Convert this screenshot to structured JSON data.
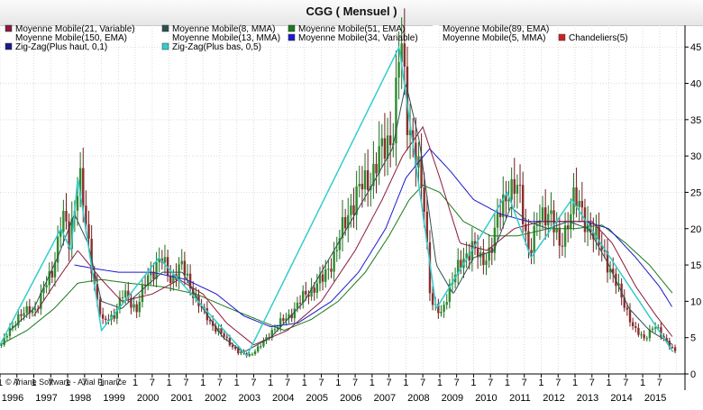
{
  "title": "CGG  ( Mensuel )",
  "footer": "© Ariane Software - Axial Finance",
  "legend": [
    {
      "label": "Moyenne Mobile(21, Variable)",
      "color": "#8b1a3a"
    },
    {
      "label": "Moyenne Mobile(8, MMA)",
      "color": "#2f4f4f"
    },
    {
      "label": "Moyenne Mobile(51, EMA)",
      "color": "#1a7a1a"
    },
    {
      "label": "Moyenne Mobile(89, EMA)",
      "color": "#ffffff"
    },
    {
      "label": "Moyenne Mobile(150, EMA)",
      "color": "#ffffff"
    },
    {
      "label": "Moyenne Mobile(13, MMA)",
      "color": "#ffffff"
    },
    {
      "label": "Moyenne Mobile(34, Variable)",
      "color": "#1a1acd"
    },
    {
      "label": "Moyenne Mobile(5, MMA)",
      "color": "#ffffff"
    },
    {
      "label": "Chandeliers(5)",
      "color": "#cc2222"
    },
    {
      "label": "Zig-Zag(Plus haut, 0,1)",
      "color": "#1a1a8a"
    },
    {
      "label": "Zig-Zag(Plus bas, 0,5)",
      "color": "#33cccc"
    }
  ],
  "chart_data": {
    "type": "line",
    "title": "CGG  ( Mensuel )",
    "yticks": [
      0,
      5,
      10,
      15,
      20,
      25,
      30,
      35,
      40,
      45
    ],
    "ylim": [
      0,
      48
    ],
    "x_year_labels": [
      "1996",
      "1997",
      "1998",
      "1999",
      "2000",
      "2001",
      "2002",
      "2003",
      "2004",
      "2005",
      "2006",
      "2007",
      "2008",
      "2009",
      "2010",
      "2011",
      "2012",
      "2013",
      "2014",
      "2015"
    ],
    "x_month_labels": [
      "1",
      "7",
      "1",
      "7",
      "1",
      "7",
      "1",
      "7",
      "1",
      "7",
      "1",
      "7",
      "1",
      "7",
      "1",
      "7",
      "1",
      "7",
      "1",
      "7",
      "1",
      "7",
      "1",
      "7",
      "1",
      "7",
      "1",
      "7",
      "1",
      "7",
      "1",
      "7",
      "1",
      "7",
      "1",
      "7",
      "1",
      "7",
      "1",
      "7"
    ],
    "grid": true,
    "legend_position": "top-left",
    "colors": {
      "price_up": "#1f6e1f",
      "price_down": "#6e1f1f",
      "ma8": "#2f4f4f",
      "ma21": "#8b1a3a",
      "ma34": "#1a1acd",
      "ma51": "#1a7a1a",
      "zigzag_low": "#33cccc",
      "zigzag_high": "#1a1a8a"
    },
    "price_anchors": [
      [
        1996.0,
        4
      ],
      [
        1996.5,
        8
      ],
      [
        1997.0,
        9
      ],
      [
        1997.5,
        14
      ],
      [
        1997.8,
        22
      ],
      [
        1998.0,
        18
      ],
      [
        1998.3,
        28
      ],
      [
        1998.5,
        20
      ],
      [
        1998.8,
        11
      ],
      [
        1999.0,
        7
      ],
      [
        1999.3,
        8
      ],
      [
        1999.6,
        11
      ],
      [
        2000.0,
        9
      ],
      [
        2000.3,
        13
      ],
      [
        2000.7,
        16
      ],
      [
        2001.0,
        13
      ],
      [
        2001.3,
        15
      ],
      [
        2001.6,
        12
      ],
      [
        2001.9,
        9
      ],
      [
        2002.2,
        7
      ],
      [
        2002.6,
        5
      ],
      [
        2003.0,
        3
      ],
      [
        2003.3,
        2.5
      ],
      [
        2003.7,
        4
      ],
      [
        2004.0,
        6
      ],
      [
        2004.5,
        8
      ],
      [
        2005.0,
        11
      ],
      [
        2005.5,
        13
      ],
      [
        2005.9,
        17
      ],
      [
        2006.3,
        23
      ],
      [
        2006.7,
        26
      ],
      [
        2007.0,
        28
      ],
      [
        2007.3,
        31
      ],
      [
        2007.6,
        34
      ],
      [
        2007.8,
        46
      ],
      [
        2008.0,
        36
      ],
      [
        2008.2,
        31
      ],
      [
        2008.5,
        23
      ],
      [
        2008.7,
        10
      ],
      [
        2009.0,
        8
      ],
      [
        2009.3,
        13
      ],
      [
        2009.6,
        15
      ],
      [
        2009.9,
        18
      ],
      [
        2010.2,
        15
      ],
      [
        2010.5,
        18
      ],
      [
        2010.8,
        23
      ],
      [
        2011.0,
        26
      ],
      [
        2011.3,
        25
      ],
      [
        2011.6,
        17
      ],
      [
        2011.9,
        21
      ],
      [
        2012.2,
        23
      ],
      [
        2012.5,
        17
      ],
      [
        2012.9,
        24
      ],
      [
        2013.2,
        22
      ],
      [
        2013.5,
        19
      ],
      [
        2013.8,
        17
      ],
      [
        2014.1,
        13
      ],
      [
        2014.4,
        10
      ],
      [
        2014.7,
        6
      ],
      [
        2015.0,
        5
      ],
      [
        2015.3,
        6.5
      ],
      [
        2015.6,
        5
      ],
      [
        2015.9,
        3
      ]
    ],
    "ma8_anchors": [
      [
        1996.3,
        6
      ],
      [
        1997.0,
        9
      ],
      [
        1997.7,
        16
      ],
      [
        1998.2,
        22
      ],
      [
        1998.6,
        18
      ],
      [
        1999.0,
        10
      ],
      [
        1999.6,
        9
      ],
      [
        2000.3,
        12
      ],
      [
        2000.8,
        14
      ],
      [
        2001.4,
        14
      ],
      [
        2002.0,
        9
      ],
      [
        2002.6,
        5
      ],
      [
        2003.2,
        3
      ],
      [
        2004.0,
        5
      ],
      [
        2005.0,
        10
      ],
      [
        2006.0,
        18
      ],
      [
        2007.0,
        26
      ],
      [
        2007.6,
        31
      ],
      [
        2008.0,
        40
      ],
      [
        2008.4,
        32
      ],
      [
        2008.9,
        15
      ],
      [
        2009.4,
        11
      ],
      [
        2010.0,
        16
      ],
      [
        2010.6,
        17
      ],
      [
        2011.1,
        23
      ],
      [
        2011.6,
        21
      ],
      [
        2012.2,
        20
      ],
      [
        2012.8,
        21
      ],
      [
        2013.4,
        20
      ],
      [
        2014.0,
        15
      ],
      [
        2014.6,
        9
      ],
      [
        2015.2,
        6
      ],
      [
        2015.9,
        4
      ]
    ],
    "ma21_anchors": [
      [
        1997.0,
        8
      ],
      [
        1997.7,
        13
      ],
      [
        1998.3,
        17
      ],
      [
        1999.0,
        13
      ],
      [
        1999.6,
        10
      ],
      [
        2000.5,
        11
      ],
      [
        2001.3,
        13
      ],
      [
        2002.0,
        11
      ],
      [
        2002.7,
        7
      ],
      [
        2003.5,
        4
      ],
      [
        2004.5,
        6
      ],
      [
        2005.5,
        10
      ],
      [
        2006.5,
        17
      ],
      [
        2007.3,
        24
      ],
      [
        2007.9,
        30
      ],
      [
        2008.5,
        34
      ],
      [
        2009.0,
        27
      ],
      [
        2009.6,
        18
      ],
      [
        2010.4,
        17
      ],
      [
        2011.2,
        20
      ],
      [
        2012.0,
        21
      ],
      [
        2012.8,
        21
      ],
      [
        2013.5,
        21
      ],
      [
        2014.1,
        18
      ],
      [
        2014.8,
        12
      ],
      [
        2015.4,
        8
      ],
      [
        2015.9,
        5
      ]
    ],
    "ma34_anchors": [
      [
        1998.2,
        15
      ],
      [
        1998.8,
        14.5
      ],
      [
        1999.5,
        14
      ],
      [
        2000.5,
        14
      ],
      [
        2001.5,
        13
      ],
      [
        2002.4,
        11
      ],
      [
        2003.2,
        8
      ],
      [
        2004.0,
        6.5
      ],
      [
        2004.8,
        7
      ],
      [
        2005.8,
        10
      ],
      [
        2006.6,
        14
      ],
      [
        2007.4,
        20
      ],
      [
        2008.0,
        27
      ],
      [
        2008.7,
        31
      ],
      [
        2009.3,
        28
      ],
      [
        2010.0,
        24
      ],
      [
        2010.8,
        22
      ],
      [
        2011.6,
        21
      ],
      [
        2012.5,
        21
      ],
      [
        2013.3,
        21
      ],
      [
        2014.0,
        20
      ],
      [
        2014.8,
        16
      ],
      [
        2015.5,
        12
      ],
      [
        2015.9,
        9
      ]
    ],
    "ma51_anchors": [
      [
        1996.0,
        4
      ],
      [
        1996.8,
        6
      ],
      [
        1997.6,
        9
      ],
      [
        1998.3,
        12.5
      ],
      [
        1999.0,
        13
      ],
      [
        1999.8,
        12.5
      ],
      [
        2000.8,
        12
      ],
      [
        2001.8,
        11
      ],
      [
        2002.8,
        9
      ],
      [
        2003.6,
        7.5
      ],
      [
        2004.4,
        6
      ],
      [
        2005.2,
        7.5
      ],
      [
        2006.0,
        10
      ],
      [
        2006.8,
        14
      ],
      [
        2007.5,
        19
      ],
      [
        2008.1,
        24
      ],
      [
        2008.5,
        26
      ],
      [
        2009.0,
        25
      ],
      [
        2009.7,
        21
      ],
      [
        2010.5,
        19
      ],
      [
        2011.3,
        19
      ],
      [
        2012.2,
        20
      ],
      [
        2013.0,
        20
      ],
      [
        2013.8,
        20.5
      ],
      [
        2014.5,
        18
      ],
      [
        2015.2,
        15
      ],
      [
        2015.9,
        11
      ]
    ],
    "zz_low": [
      [
        1996.0,
        4
      ],
      [
        1997.8,
        20
      ],
      [
        1998.1,
        17
      ],
      [
        1998.3,
        27
      ],
      [
        1999.0,
        6
      ],
      [
        2000.7,
        16
      ],
      [
        2003.3,
        2.5
      ],
      [
        2007.8,
        45
      ],
      [
        2008.9,
        9
      ],
      [
        2011.0,
        25
      ],
      [
        2011.7,
        16
      ],
      [
        2012.9,
        24
      ],
      [
        2015.9,
        3
      ]
    ]
  }
}
